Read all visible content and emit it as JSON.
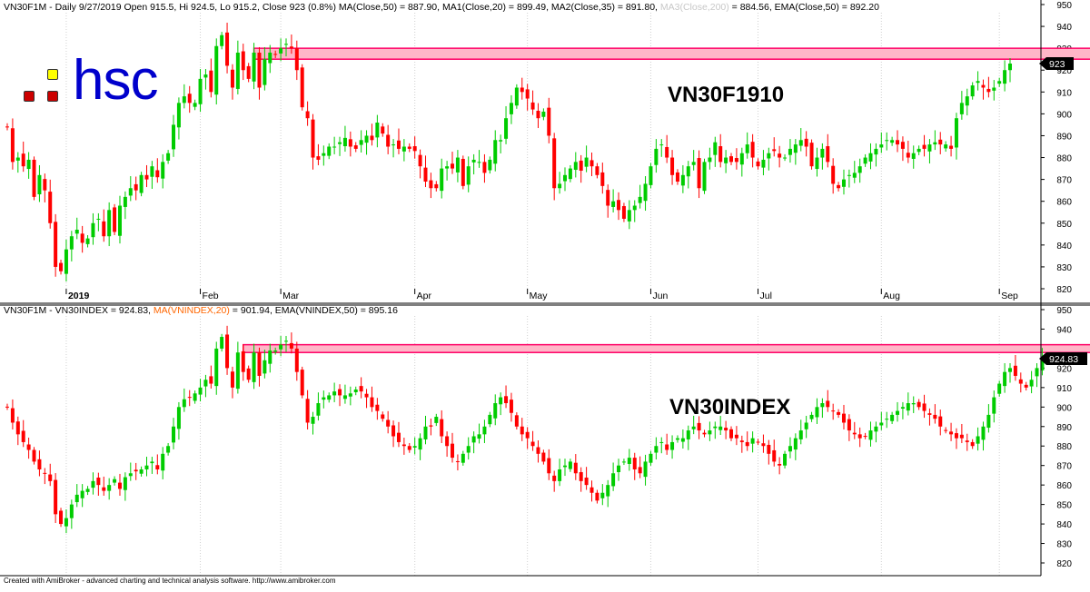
{
  "colors": {
    "up": "#00cc00",
    "down": "#ff0000",
    "grid": "#d0d0d0",
    "band_fill": "#ffb6c8",
    "band_stroke": "#ff0066",
    "ma_label": "#ff6600",
    "ma3_label": "#c8c8c8",
    "label_bg": "#000000",
    "logo_text": "#0000cc"
  },
  "logo": {
    "text": "hsc",
    "squares": [
      "#ffff00",
      "#cc0000",
      "#cc0000"
    ]
  },
  "footer": "Created with AmiBroker - advanced charting and technical analysis software. http://www.amibroker.com",
  "panel1": {
    "header_parts": [
      {
        "text": "VN30F1M - Daily 9/27/2019 Open 915.5, Hi 924.5, Lo 915.2, Close 923 (0.8%) MA(Close,50) = 887.90, MA1(Close,20) = 899.49, MA2(Close,35) = 891.80, ",
        "color": "#000000"
      },
      {
        "text": "MA3(Close,200)",
        "color": "#c8c8c8"
      },
      {
        "text": " = 884.56, EMA(Close,50) = 892.20",
        "color": "#000000"
      }
    ],
    "watermark": "VN30F1910",
    "last_price": "923"
  },
  "panel2": {
    "header_parts": [
      {
        "text": "VN30F1M - VN30INDEX = 924.83, ",
        "color": "#000000"
      },
      {
        "text": "MA(VNINDEX,20)",
        "color": "#ff6600"
      },
      {
        "text": " = 901.94, EMA(VNINDEX,50) = 895.16",
        "color": "#000000"
      }
    ],
    "watermark": "VN30INDEX",
    "last_price": "924.83"
  },
  "chart_data": [
    {
      "type": "candlestick",
      "title": "VN30F1910",
      "ylim": [
        815,
        955
      ],
      "yticks": [
        820,
        830,
        840,
        850,
        860,
        870,
        880,
        890,
        900,
        910,
        920,
        930,
        940,
        950
      ],
      "xticks": [
        {
          "label": "2019",
          "idx": 11,
          "bold": true
        },
        {
          "label": "Feb",
          "idx": 36
        },
        {
          "label": "Mar",
          "idx": 51
        },
        {
          "label": "Apr",
          "idx": 76
        },
        {
          "label": "May",
          "idx": 97
        },
        {
          "label": "Jun",
          "idx": 120
        },
        {
          "label": "Jul",
          "idx": 140
        },
        {
          "label": "Aug",
          "idx": 163
        },
        {
          "label": "Sep",
          "idx": 185
        }
      ],
      "resistance_band": {
        "from_idx": 46,
        "to_idx": 235,
        "low": 925,
        "high": 930
      },
      "closes": [
        894,
        878,
        880,
        876,
        879,
        862,
        872,
        865,
        850,
        830,
        828,
        838,
        844,
        847,
        841,
        843,
        850,
        852,
        844,
        856,
        846,
        858,
        862,
        866,
        865,
        872,
        870,
        876,
        871,
        878,
        882,
        895,
        905,
        908,
        905,
        905,
        916,
        918,
        910,
        931,
        936,
        922,
        912,
        928,
        920,
        916,
        928,
        912,
        925,
        928,
        927,
        930,
        932,
        930,
        920,
        903,
        898,
        880,
        879,
        882,
        885,
        885,
        887,
        889,
        885,
        884,
        888,
        890,
        888,
        896,
        891,
        885,
        886,
        884,
        885,
        884,
        883,
        876,
        869,
        866,
        866,
        875,
        876,
        875,
        880,
        867,
        876,
        879,
        878,
        873,
        879,
        888,
        888,
        898,
        905,
        912,
        910,
        907,
        902,
        898,
        901,
        890,
        866,
        868,
        872,
        875,
        878,
        874,
        880,
        876,
        872,
        867,
        858,
        860,
        856,
        852,
        856,
        858,
        862,
        868,
        876,
        884,
        886,
        880,
        872,
        869,
        872,
        876,
        878,
        866,
        878,
        880,
        887,
        878,
        880,
        878,
        878,
        882,
        886,
        880,
        876,
        879,
        882,
        883,
        880,
        880,
        884,
        886,
        888,
        885,
        876,
        880,
        884,
        878,
        868,
        866,
        870,
        872,
        873,
        876,
        880,
        882,
        884,
        886,
        888,
        888,
        886,
        884,
        880,
        882,
        884,
        884,
        886,
        887,
        886,
        886,
        884,
        898,
        905,
        908,
        913,
        915,
        912,
        910,
        912,
        915,
        920,
        923
      ],
      "last_close": 923
    },
    {
      "type": "candlestick",
      "title": "VN30INDEX",
      "ylim": [
        815,
        955
      ],
      "yticks": [
        820,
        830,
        840,
        850,
        860,
        870,
        880,
        890,
        900,
        910,
        920,
        930,
        940,
        950
      ],
      "resistance_band": {
        "from_idx": 44,
        "to_idx": 235,
        "low": 928,
        "high": 932
      },
      "closes": [
        900,
        892,
        886,
        882,
        878,
        872,
        868,
        866,
        862,
        845,
        840,
        843,
        850,
        855,
        857,
        858,
        862,
        860,
        857,
        860,
        863,
        858,
        864,
        866,
        867,
        868,
        870,
        872,
        868,
        876,
        880,
        890,
        900,
        904,
        905,
        907,
        910,
        914,
        912,
        930,
        936,
        920,
        910,
        928,
        918,
        914,
        928,
        916,
        924,
        929,
        929,
        932,
        934,
        930,
        918,
        906,
        892,
        895,
        902,
        905,
        906,
        908,
        906,
        906,
        907,
        909,
        908,
        905,
        900,
        898,
        894,
        890,
        885,
        882,
        880,
        878,
        880,
        884,
        890,
        890,
        895,
        885,
        880,
        874,
        872,
        876,
        880,
        885,
        886,
        890,
        896,
        902,
        905,
        902,
        897,
        890,
        886,
        884,
        880,
        876,
        872,
        866,
        862,
        868,
        870,
        872,
        866,
        862,
        860,
        856,
        852,
        856,
        860,
        866,
        870,
        872,
        874,
        868,
        866,
        872,
        876,
        880,
        882,
        878,
        882,
        884,
        884,
        888,
        890,
        888,
        886,
        888,
        890,
        890,
        888,
        884,
        884,
        882,
        880,
        884,
        882,
        880,
        876,
        872,
        870,
        876,
        880,
        884,
        888,
        892,
        896,
        900,
        902,
        900,
        898,
        896,
        892,
        888,
        886,
        884,
        885,
        888,
        890,
        892,
        894,
        896,
        898,
        900,
        902,
        902,
        900,
        898,
        896,
        894,
        890,
        888,
        886,
        884,
        884,
        882,
        880,
        885,
        890,
        896,
        905,
        912,
        918,
        920,
        916,
        912,
        910,
        914,
        920,
        924.83
      ],
      "last_close": 924.83
    }
  ]
}
